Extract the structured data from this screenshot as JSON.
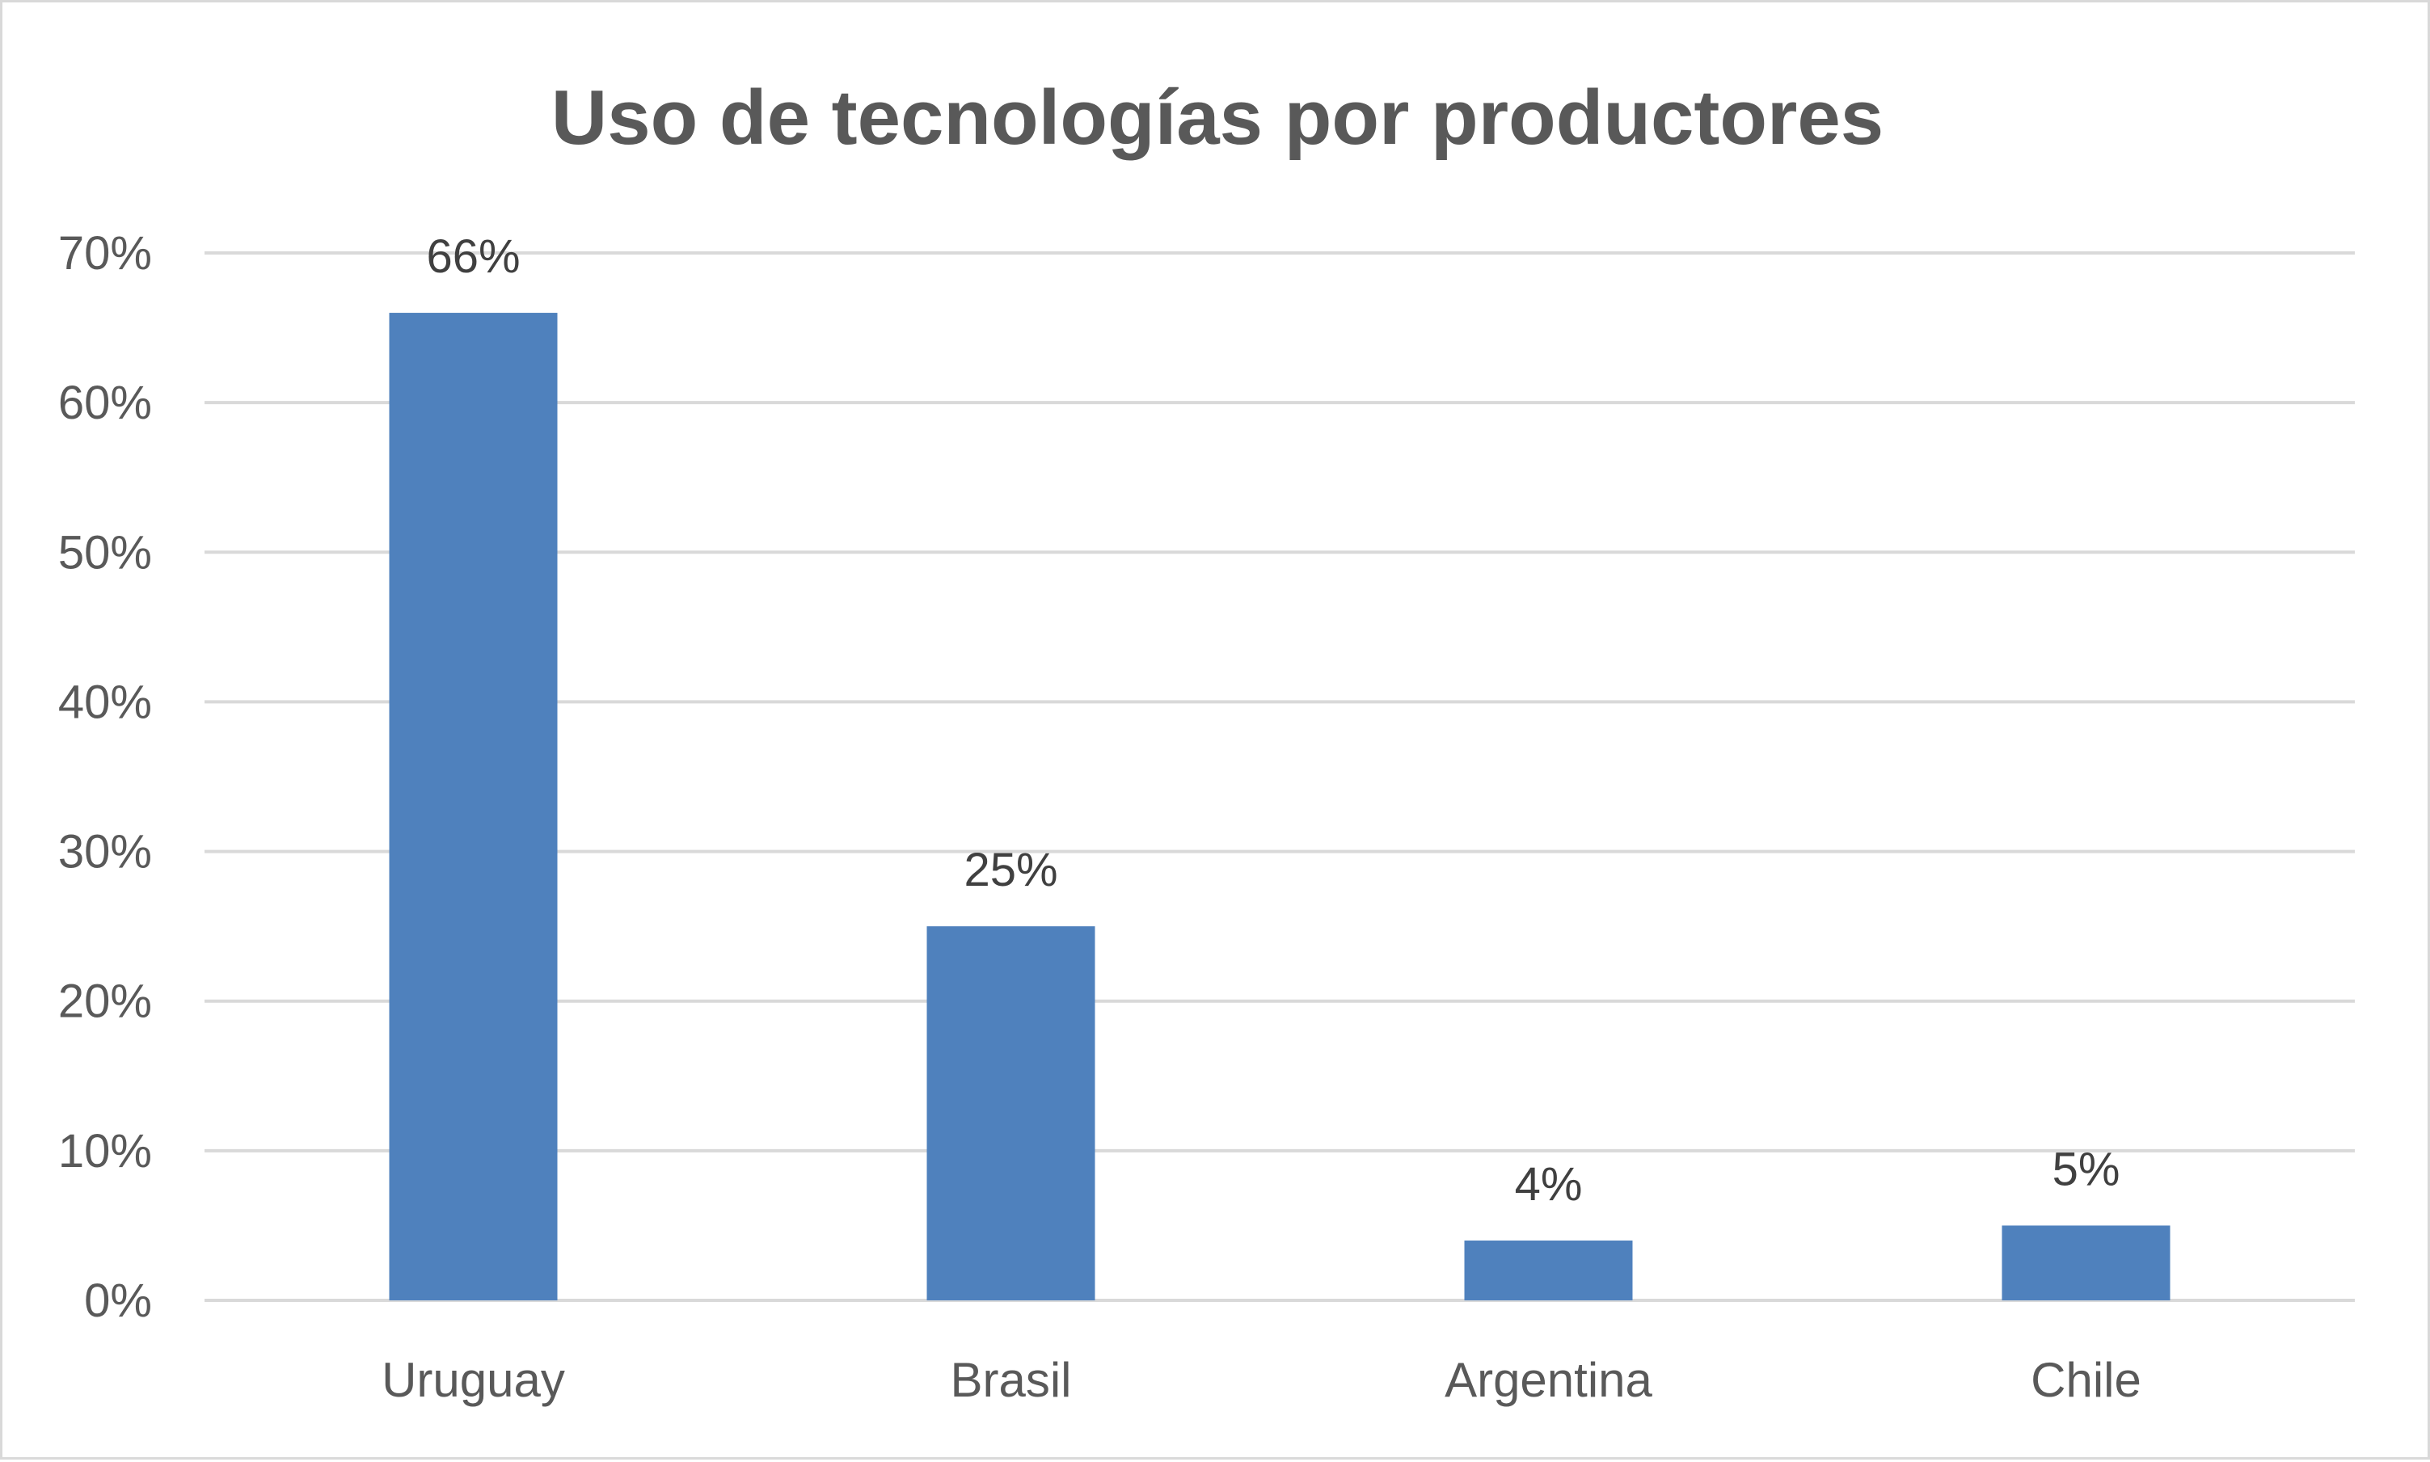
{
  "chart_data": {
    "type": "bar",
    "title": "Uso de tecnologías por productores",
    "categories": [
      "Uruguay",
      "Brasil",
      "Argentina",
      "Chile"
    ],
    "values": [
      66,
      25,
      4,
      5
    ],
    "value_unit": "%",
    "data_labels": [
      "66%",
      "25%",
      "4%",
      "5%"
    ],
    "ylim": [
      0,
      70
    ],
    "yticks": [
      0,
      10,
      20,
      30,
      40,
      50,
      60,
      70
    ],
    "ytick_labels": [
      "0%",
      "10%",
      "20%",
      "30%",
      "40%",
      "50%",
      "60%",
      "70%"
    ],
    "xlabel": "",
    "ylabel": "",
    "grid": true,
    "legend": "none",
    "colors": {
      "bar": "#4f81bd",
      "gridline": "#d9d9d9",
      "text": "#595959",
      "data_label": "#404040",
      "border": "#d9d9d9"
    }
  }
}
